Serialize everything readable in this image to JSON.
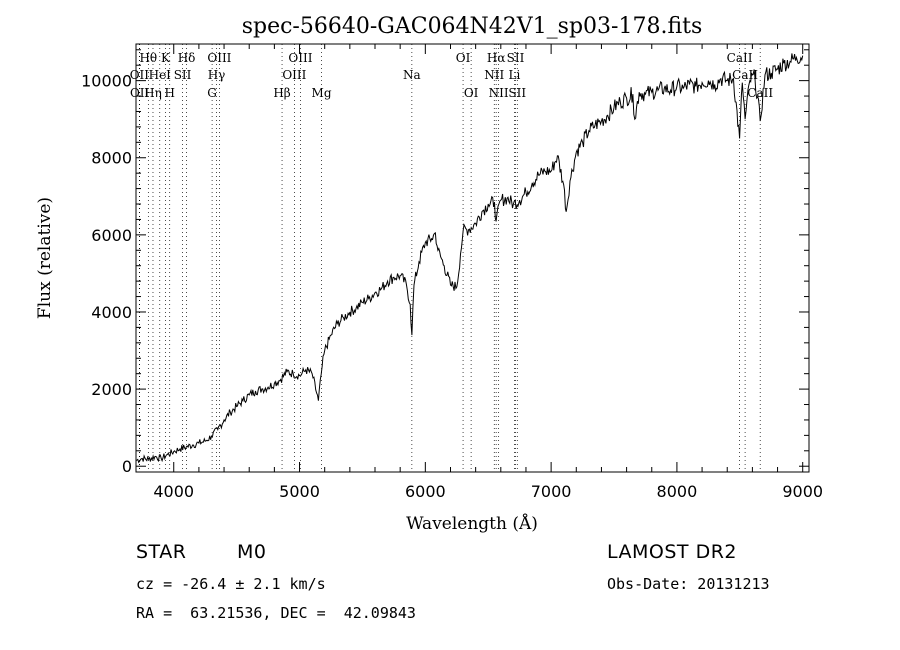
{
  "chart_data": {
    "type": "line",
    "title": "spec-56640-GAC064N42V1_sp03-178.fits",
    "xlabel": "Wavelength (Å)",
    "ylabel": "Flux (relative)",
    "xlim": [
      3700,
      9050
    ],
    "ylim": [
      -150,
      10950
    ],
    "x_ticks": [
      4000,
      5000,
      6000,
      7000,
      8000,
      9000
    ],
    "y_ticks": [
      0,
      2000,
      4000,
      6000,
      8000,
      10000
    ],
    "grid": false,
    "series": [
      {
        "x": [
          3700,
          3750,
          3800,
          3850,
          3900,
          3950,
          4000,
          4050,
          4100,
          4150,
          4200,
          4250,
          4300,
          4350,
          4400,
          4450,
          4500,
          4550,
          4600,
          4650,
          4700,
          4750,
          4800,
          4850,
          4900,
          4950,
          5000,
          5050,
          5100,
          5150,
          5180,
          5200,
          5250,
          5300,
          5350,
          5400,
          5450,
          5500,
          5550,
          5600,
          5650,
          5700,
          5750,
          5800,
          5850,
          5880,
          5893,
          5910,
          5950,
          6000,
          6050,
          6080,
          6100,
          6150,
          6200,
          6250,
          6280,
          6300,
          6350,
          6400,
          6450,
          6500,
          6550,
          6563,
          6600,
          6650,
          6700,
          6750,
          6800,
          6850,
          6900,
          6950,
          7000,
          7050,
          7100,
          7120,
          7150,
          7200,
          7250,
          7300,
          7350,
          7400,
          7450,
          7500,
          7550,
          7600,
          7650,
          7665,
          7700,
          7750,
          7800,
          7850,
          7900,
          7950,
          8000,
          8050,
          8100,
          8150,
          8200,
          8250,
          8300,
          8350,
          8400,
          8450,
          8498,
          8520,
          8542,
          8580,
          8620,
          8662,
          8700,
          8750,
          8800,
          8850,
          8900,
          8950,
          9000
        ],
        "y": [
          150,
          200,
          180,
          250,
          200,
          300,
          380,
          450,
          500,
          550,
          600,
          650,
          780,
          950,
          1200,
          1400,
          1550,
          1700,
          1850,
          1950,
          2000,
          2050,
          2150,
          2250,
          2450,
          2400,
          2350,
          2500,
          2400,
          1700,
          2600,
          3000,
          3400,
          3700,
          3850,
          4000,
          4100,
          4250,
          4350,
          4500,
          4600,
          4800,
          4900,
          4950,
          4700,
          4200,
          3400,
          4700,
          5300,
          5800,
          5900,
          6050,
          5600,
          5200,
          4700,
          4650,
          5500,
          6100,
          6150,
          6300,
          6600,
          6800,
          6850,
          6350,
          6900,
          6950,
          6800,
          6900,
          7100,
          7350,
          7550,
          7650,
          7650,
          8050,
          7300,
          6600,
          7400,
          8150,
          8400,
          8700,
          8850,
          8950,
          9100,
          9300,
          9450,
          9550,
          9650,
          9000,
          9700,
          9650,
          9700,
          9750,
          9800,
          9750,
          9850,
          9800,
          9900,
          9850,
          9950,
          10000,
          9900,
          10050,
          10000,
          10050,
          8500,
          9950,
          9000,
          10000,
          10100,
          8950,
          10150,
          10200,
          10300,
          10450,
          10500,
          10600,
          10650
        ]
      }
    ],
    "line_markers": [
      {
        "label": "Hθ",
        "x": 3798,
        "row": 0
      },
      {
        "label": "K",
        "x": 3934,
        "row": 0
      },
      {
        "label": "Hδ",
        "x": 4102,
        "row": 0
      },
      {
        "label": "OIII",
        "x": 4363,
        "row": 0
      },
      {
        "label": "OIII",
        "x": 5007,
        "row": 0
      },
      {
        "label": "OI",
        "x": 6300,
        "row": 0
      },
      {
        "label": "Hα",
        "x": 6563,
        "row": 0
      },
      {
        "label": "SII",
        "x": 6717,
        "row": 0
      },
      {
        "label": "CaII",
        "x": 8498,
        "row": 0
      },
      {
        "label": "OII",
        "x": 3727,
        "row": 1
      },
      {
        "label": "HeI",
        "x": 3889,
        "row": 1
      },
      {
        "label": "SII",
        "x": 4070,
        "row": 1
      },
      {
        "label": "Hγ",
        "x": 4340,
        "row": 1
      },
      {
        "label": "OIII",
        "x": 4959,
        "row": 1
      },
      {
        "label": "Na",
        "x": 5893,
        "row": 1
      },
      {
        "label": "NII",
        "x": 6548,
        "row": 1
      },
      {
        "label": "Li",
        "x": 6708,
        "row": 1
      },
      {
        "label": "CaII",
        "x": 8542,
        "row": 1
      },
      {
        "label": "OII",
        "x": 3729,
        "row": 2
      },
      {
        "label": "Hη",
        "x": 3835,
        "row": 2
      },
      {
        "label": "H",
        "x": 3968,
        "row": 2
      },
      {
        "label": "G",
        "x": 4305,
        "row": 2
      },
      {
        "label": "Hβ",
        "x": 4861,
        "row": 2
      },
      {
        "label": "Mg",
        "x": 5175,
        "row": 2
      },
      {
        "label": "OI",
        "x": 6364,
        "row": 2
      },
      {
        "label": "NII",
        "x": 6583,
        "row": 2
      },
      {
        "label": "SII",
        "x": 6731,
        "row": 2
      },
      {
        "label": "CaII",
        "x": 8662,
        "row": 2
      }
    ]
  },
  "info": {
    "object_class": "STAR",
    "subclass": "M0",
    "survey": "LAMOST DR2",
    "cz": "cz = -26.4 ± 2.1 km/s",
    "obs_date": "Obs-Date: 20131213",
    "coords": "RA =  63.21536, DEC =  42.09843"
  }
}
